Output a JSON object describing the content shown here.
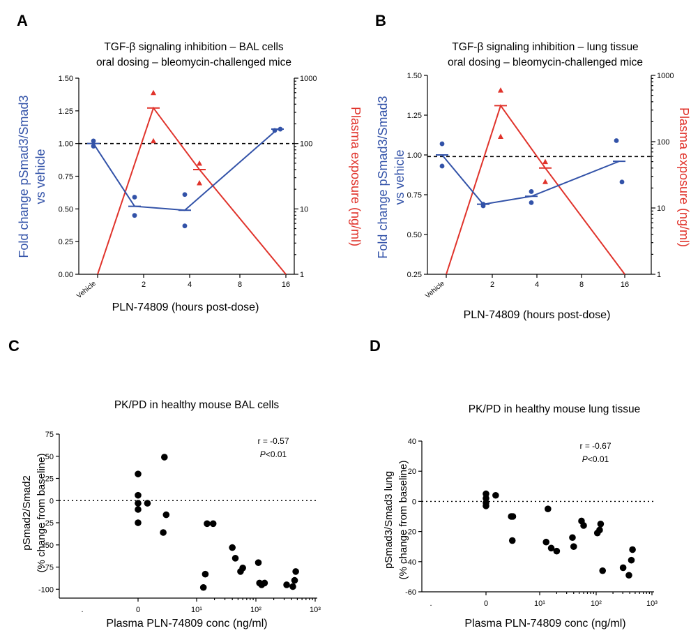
{
  "colors": {
    "pd": "#3252a8",
    "pk": "#e0332b",
    "ink": "#000000"
  },
  "panels": {
    "A": {
      "letter": "A",
      "title_lines": [
        "TGF-β signaling inhibition – BAL cells",
        "oral dosing – bleomycin-challenged mice"
      ],
      "ylabel_left_lines": [
        "Fold change pSmad3/Smad3",
        "vs vehicle"
      ],
      "ylabel_right": "Plasma exposure (ng/ml)",
      "xlabel": "PLN-74809 (hours post-dose)"
    },
    "B": {
      "letter": "B",
      "title_lines": [
        "TGF-β signaling inhibition – lung tissue",
        "oral dosing – bleomycin-challenged mice"
      ],
      "ylabel_left_lines": [
        "Fold change pSmad3/Smad3",
        "vs vehicle"
      ],
      "ylabel_right": "Plasma exposure (ng/ml)",
      "xlabel": "PLN-74809 (hours post-dose)"
    },
    "C": {
      "letter": "C",
      "title": "PK/PD in healthy mouse BAL cells",
      "ylabel_lines": [
        "pSmad2/Smad2",
        "(% change from baseline)"
      ],
      "xlabel": "Plasma PLN-74809 conc (ng/ml)",
      "r_text": "r = -0.57",
      "p_italic": "P",
      "p_rest": "<0.01"
    },
    "D": {
      "letter": "D",
      "title": "PK/PD in healthy mouse lung tissue",
      "ylabel_lines": [
        "pSmad3/Smad3 lung",
        "(% change from baseline)"
      ],
      "xlabel": "Plasma PLN-74809 conc (ng/ml)",
      "r_text": "r = -0.67",
      "p_italic": "P",
      "p_rest": "<0.01"
    }
  },
  "chart_data": [
    {
      "panel": "A",
      "type": "line",
      "title": "TGF-β signaling inhibition – BAL cells / oral dosing – bleomycin-challenged mice",
      "xlabel": "PLN-74809 (hours post-dose)",
      "ylabel": "Fold change pSmad3/Smad3 vs vehicle",
      "y2label": "Plasma exposure (ng/ml)",
      "x_ticks": [
        "Vehicle",
        "2",
        "4",
        "8",
        "16"
      ],
      "ylim": [
        0,
        1.5
      ],
      "y_ticks": [
        "0.00",
        "0.25",
        "0.50",
        "0.75",
        "1.00",
        "1.25",
        "1.50"
      ],
      "y2lim": [
        1,
        1000
      ],
      "y2_scale": "log",
      "y2_ticks": [
        "1",
        "10",
        "100",
        "1000"
      ],
      "reference_line_y": 1.0,
      "pd_points": [
        [
          0,
          1.02
        ],
        [
          0,
          0.98
        ],
        [
          2,
          0.59
        ],
        [
          2,
          0.45
        ],
        [
          4,
          0.61
        ],
        [
          4,
          0.37
        ],
        [
          16,
          1.1
        ],
        [
          16,
          1.11
        ]
      ],
      "pd_mean": [
        [
          0,
          1.0
        ],
        [
          2,
          0.52
        ],
        [
          4,
          0.49
        ],
        [
          16,
          1.11
        ]
      ],
      "pk_points": [
        [
          2,
          600
        ],
        [
          2,
          110
        ],
        [
          4,
          50
        ],
        [
          4,
          25
        ]
      ],
      "pk_mean": [
        [
          0,
          1
        ],
        [
          2,
          350
        ],
        [
          4,
          40
        ],
        [
          16,
          1
        ]
      ]
    },
    {
      "panel": "B",
      "type": "line",
      "title": "TGF-β signaling inhibition – lung tissue / oral dosing – bleomycin-challenged mice",
      "xlabel": "PLN-74809 (hours post-dose)",
      "ylabel": "Fold change pSmad3/Smad3 vs vehicle",
      "y2label": "Plasma exposure (ng/ml)",
      "x_ticks": [
        "Vehicle",
        "2",
        "4",
        "8",
        "16"
      ],
      "ylim": [
        0.25,
        1.5
      ],
      "y_ticks": [
        "0.25",
        "0.50",
        "0.75",
        "1.00",
        "1.25",
        "1.50"
      ],
      "y2lim": [
        1,
        1000
      ],
      "y2_scale": "log",
      "y2_ticks": [
        "1",
        "10",
        "100",
        "1000"
      ],
      "reference_line_y": 0.99,
      "pd_points": [
        [
          0,
          1.07
        ],
        [
          0,
          0.93
        ],
        [
          2,
          0.68
        ],
        [
          2,
          0.69
        ],
        [
          4,
          0.77
        ],
        [
          4,
          0.7
        ],
        [
          16,
          1.09
        ],
        [
          16,
          0.83
        ]
      ],
      "pd_mean": [
        [
          0,
          1.0
        ],
        [
          2,
          0.69
        ],
        [
          4,
          0.74
        ],
        [
          16,
          0.96
        ]
      ],
      "pk_points": [
        [
          2,
          600
        ],
        [
          2,
          120
        ],
        [
          4,
          50
        ],
        [
          4,
          25
        ]
      ],
      "pk_mean": [
        [
          0,
          1
        ],
        [
          2,
          350
        ],
        [
          4,
          40
        ],
        [
          16,
          1
        ]
      ]
    },
    {
      "panel": "C",
      "type": "scatter",
      "title": "PK/PD in healthy mouse BAL cells",
      "xlabel": "Plasma PLN-74809 conc (ng/ml)",
      "ylabel": "pSmad2/Smad2 (% change from baseline)",
      "x_scale": "log",
      "x_ticks": [
        ".",
        "0",
        "10¹",
        "10²",
        "10³"
      ],
      "ylim": [
        -110,
        75
      ],
      "y_ticks": [
        "-100",
        "-75",
        "-50",
        "-25",
        "0",
        "25",
        "50",
        "75"
      ],
      "reference_line_y": 0,
      "r": -0.57,
      "p": "P<0.01",
      "points": [
        [
          0,
          30
        ],
        [
          0,
          6
        ],
        [
          0,
          -3
        ],
        [
          0,
          -10
        ],
        [
          0,
          -25
        ],
        [
          1.6,
          -3
        ],
        [
          4.5,
          49
        ],
        [
          4.8,
          -16
        ],
        [
          4.3,
          -36
        ],
        [
          13,
          -98
        ],
        [
          14,
          -83
        ],
        [
          15,
          -26
        ],
        [
          19,
          -26
        ],
        [
          40,
          -53
        ],
        [
          45,
          -65
        ],
        [
          55,
          -80
        ],
        [
          60,
          -76
        ],
        [
          110,
          -70
        ],
        [
          115,
          -93
        ],
        [
          125,
          -95
        ],
        [
          140,
          -93
        ],
        [
          330,
          -95
        ],
        [
          420,
          -97
        ],
        [
          450,
          -90
        ],
        [
          470,
          -80
        ]
      ]
    },
    {
      "panel": "D",
      "type": "scatter",
      "title": "PK/PD in healthy mouse lung tissue",
      "xlabel": "Plasma PLN-74809 conc (ng/ml)",
      "ylabel": "pSmad3/Smad3 lung (% change from baseline)",
      "x_scale": "log",
      "x_ticks": [
        ".",
        "0",
        "10¹",
        "10²",
        "10³"
      ],
      "ylim": [
        -60,
        40
      ],
      "y_ticks": [
        "-60",
        "-40",
        "-20",
        "0",
        "20",
        "40"
      ],
      "reference_line_y": 0,
      "r": -0.67,
      "p": "P<0.01",
      "points": [
        [
          0,
          5
        ],
        [
          0,
          2
        ],
        [
          0,
          -1
        ],
        [
          0,
          -3
        ],
        [
          1.8,
          4
        ],
        [
          4.7,
          -10
        ],
        [
          5,
          -10
        ],
        [
          4.9,
          -26
        ],
        [
          14,
          -5
        ],
        [
          13,
          -27
        ],
        [
          16,
          -31
        ],
        [
          20,
          -33
        ],
        [
          38,
          -24
        ],
        [
          40,
          -30
        ],
        [
          55,
          -13
        ],
        [
          60,
          -16
        ],
        [
          105,
          -21
        ],
        [
          115,
          -19
        ],
        [
          120,
          -15
        ],
        [
          130,
          -46
        ],
        [
          300,
          -44
        ],
        [
          380,
          -49
        ],
        [
          420,
          -39
        ],
        [
          440,
          -32
        ]
      ]
    }
  ]
}
